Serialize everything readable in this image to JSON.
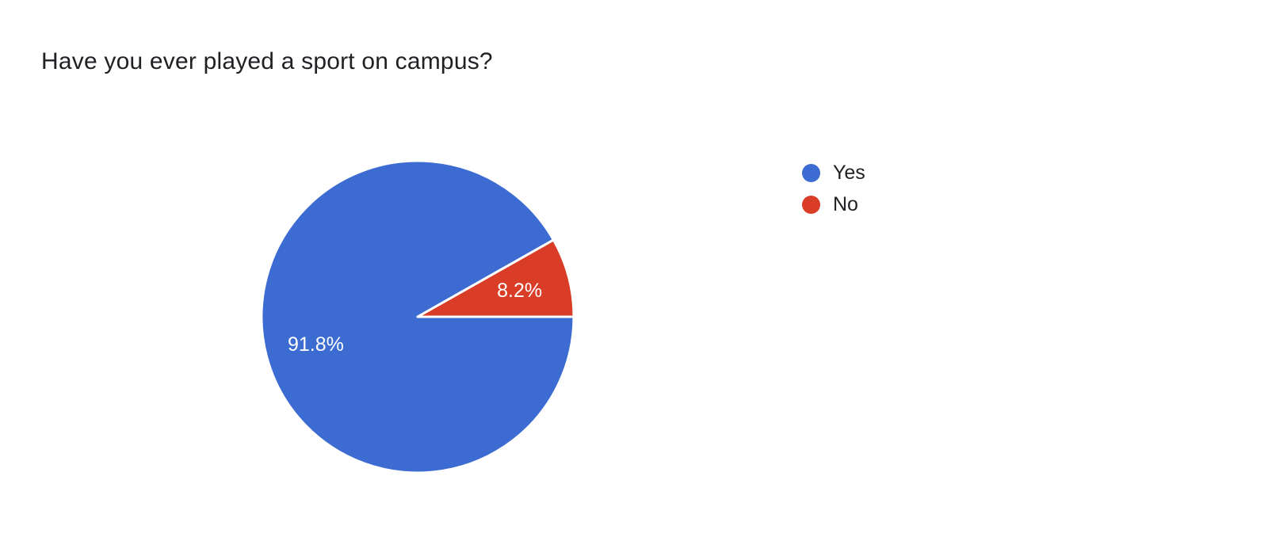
{
  "chart_data": {
    "type": "pie",
    "title": "Have you ever played a sport on campus?",
    "categories": [
      "Yes",
      "No"
    ],
    "values": [
      91.8,
      8.2
    ],
    "labels": [
      "91.8%",
      "8.2%"
    ],
    "colors": [
      "#3c6bd2",
      "#d93d27"
    ],
    "unit": "%",
    "legend_position": "right",
    "start_angle_deg": 0,
    "direction": "clockwise",
    "slice_border_color": "#ffffff",
    "label_color": "#ffffff",
    "text_color": "#202124",
    "background": "#ffffff"
  }
}
